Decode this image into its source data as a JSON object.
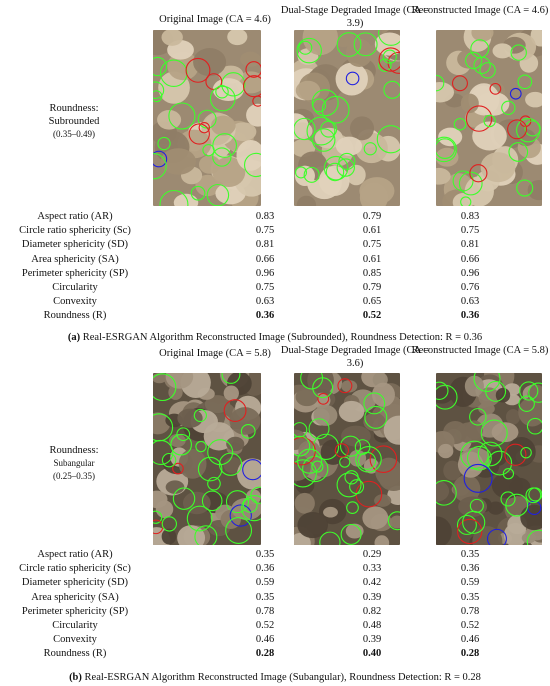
{
  "panel_a": {
    "headers": [
      "Original Image (CA = 4.6)",
      "Dual-Stage Degraded Image (CA = 3.9)",
      "Reconstructed Image (CA = 4.6)"
    ],
    "roundness_title": "Roundness:",
    "roundness_class": "Subrounded",
    "roundness_range": "(0.35–0.49)",
    "metrics": [
      {
        "name": "Aspect ratio (AR)",
        "values": [
          "0.83",
          "0.79",
          "0.83"
        ]
      },
      {
        "name": "Circle ratio sphericity (Sc)",
        "values": [
          "0.75",
          "0.61",
          "0.75"
        ]
      },
      {
        "name": "Diameter sphericity (SD)",
        "values": [
          "0.81",
          "0.75",
          "0.81"
        ]
      },
      {
        "name": "Area sphericity (SA)",
        "values": [
          "0.66",
          "0.61",
          "0.66"
        ]
      },
      {
        "name": "Perimeter sphericity (SP)",
        "values": [
          "0.96",
          "0.85",
          "0.96"
        ]
      },
      {
        "name": "Circularity",
        "values": [
          "0.75",
          "0.79",
          "0.76"
        ]
      },
      {
        "name": "Convexity",
        "values": [
          "0.63",
          "0.65",
          "0.63"
        ]
      },
      {
        "name": "Roundness (R)",
        "values": [
          "0.36",
          "0.52",
          "0.36"
        ]
      }
    ],
    "caption_letter": "(a)",
    "caption": "Real-ESRGAN Algorithm Reconstructed Image (Subrounded), Roundness Detection: R = 0.36"
  },
  "panel_b": {
    "headers": [
      "Original Image (CA = 5.8)",
      "Dual-Stage Degraded Image (CA = 3.6)",
      "Reconstructed Image (CA = 5.8)"
    ],
    "roundness_title": "Roundness:",
    "roundness_class": "Subangular",
    "roundness_range": "(0.25–0.35)",
    "metrics": [
      {
        "name": "Aspect ratio (AR)",
        "values": [
          "0.35",
          "0.29",
          "0.35"
        ]
      },
      {
        "name": "Circle ratio sphericity (Sc)",
        "values": [
          "0.36",
          "0.33",
          "0.36"
        ]
      },
      {
        "name": "Diameter sphericity (SD)",
        "values": [
          "0.59",
          "0.42",
          "0.59"
        ]
      },
      {
        "name": "Area sphericity (SA)",
        "values": [
          "0.35",
          "0.39",
          "0.35"
        ]
      },
      {
        "name": "Perimeter sphericity (SP)",
        "values": [
          "0.78",
          "0.82",
          "0.78"
        ]
      },
      {
        "name": "Circularity",
        "values": [
          "0.52",
          "0.48",
          "0.52"
        ]
      },
      {
        "name": "Convexity",
        "values": [
          "0.46",
          "0.39",
          "0.46"
        ]
      },
      {
        "name": "Roundness (R)",
        "values": [
          "0.28",
          "0.40",
          "0.28"
        ]
      }
    ],
    "caption_letter": "(b)",
    "caption": "Real-ESRGAN Algorithm Reconstructed Image (Subangular), Roundness Detection: R = 0.28"
  },
  "colors": {
    "sand_light": "#b7a48a",
    "sand_dark": "#6f5f4c",
    "outline_green": "#3dff2a",
    "outline_red": "#e02020",
    "outline_blue": "#2020e0"
  }
}
